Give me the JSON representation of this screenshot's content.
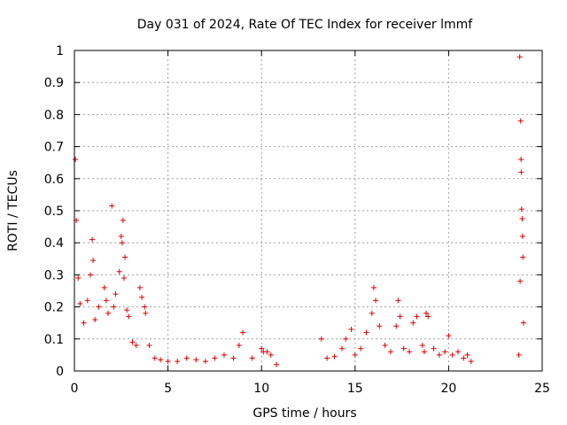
{
  "chart_data": {
    "type": "scatter",
    "title": "Day 031 of 2024, Rate Of TEC Index for receiver lmmf",
    "xlabel": "GPS time / hours",
    "ylabel": "ROTI / TECUs",
    "xlim": [
      0,
      25
    ],
    "ylim": [
      0,
      1
    ],
    "xticks": [
      0,
      5,
      10,
      15,
      20,
      25
    ],
    "yticks": [
      0,
      0.1,
      0.2,
      0.3,
      0.4,
      0.5,
      0.6,
      0.7,
      0.8,
      0.9,
      1
    ],
    "grid": true,
    "marker": "+",
    "series_color": "#e00000",
    "series": [
      {
        "x": [
          0.05,
          0.1,
          0.2,
          0.3,
          0.5,
          0.7,
          0.85,
          0.95,
          1.0,
          1.1,
          1.3,
          1.6,
          1.7,
          1.8,
          2.0,
          2.1,
          2.2,
          2.4,
          2.5,
          2.55,
          2.6,
          2.65,
          2.7,
          2.8,
          2.9,
          3.1,
          3.3,
          3.5,
          3.6,
          3.75,
          3.8,
          4.0,
          4.3,
          4.6,
          5.0,
          5.5,
          6.0,
          6.5,
          7.0,
          7.5,
          8.0,
          8.5,
          8.8,
          9.0,
          9.5,
          10.0,
          10.1,
          10.3,
          10.5,
          10.8,
          13.2,
          13.5,
          13.9,
          14.3,
          14.5,
          14.8,
          15.0,
          15.3,
          15.6,
          15.9,
          16.0,
          16.1,
          16.3,
          16.6,
          16.9,
          17.2,
          17.3,
          17.4,
          17.6,
          17.9,
          18.1,
          18.3,
          18.6,
          18.7,
          18.8,
          18.9,
          19.2,
          19.5,
          19.8,
          20.0,
          20.2,
          20.5,
          20.8,
          21.0,
          21.2,
          23.75,
          23.8,
          23.82,
          23.85,
          23.87,
          23.88,
          23.9,
          23.93,
          23.95,
          23.97,
          24.0
        ],
        "y": [
          0.66,
          0.47,
          0.29,
          0.21,
          0.15,
          0.22,
          0.3,
          0.41,
          0.345,
          0.16,
          0.2,
          0.26,
          0.22,
          0.18,
          0.515,
          0.2,
          0.24,
          0.31,
          0.42,
          0.4,
          0.47,
          0.29,
          0.355,
          0.19,
          0.17,
          0.09,
          0.08,
          0.26,
          0.23,
          0.2,
          0.18,
          0.08,
          0.04,
          0.035,
          0.03,
          0.03,
          0.04,
          0.035,
          0.03,
          0.04,
          0.05,
          0.04,
          0.08,
          0.12,
          0.04,
          0.07,
          0.06,
          0.06,
          0.05,
          0.02,
          0.1,
          0.04,
          0.045,
          0.07,
          0.1,
          0.13,
          0.05,
          0.07,
          0.12,
          0.18,
          0.26,
          0.22,
          0.14,
          0.08,
          0.06,
          0.14,
          0.22,
          0.17,
          0.07,
          0.06,
          0.15,
          0.17,
          0.08,
          0.06,
          0.18,
          0.17,
          0.07,
          0.05,
          0.06,
          0.11,
          0.05,
          0.06,
          0.04,
          0.05,
          0.03,
          0.05,
          0.98,
          0.28,
          0.78,
          0.66,
          0.62,
          0.505,
          0.475,
          0.42,
          0.355,
          0.15
        ]
      }
    ]
  }
}
